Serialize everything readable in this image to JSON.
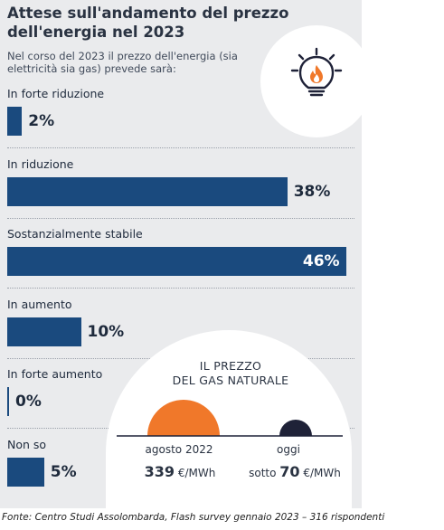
{
  "title": "Attese sull'andamento del prezzo dell'energia nel 2023",
  "subtitle": "Nel corso del 2023 il prezzo dell'energia (sia elettricità sia gas) prevede sarà:",
  "icon": "lightbulb-flame-icon",
  "colors": {
    "bar": "#1a4a7e",
    "panel": "#eaebed",
    "gas_high": "#f0782a",
    "gas_low": "#1f2238"
  },
  "chart_data": {
    "type": "bar",
    "orientation": "horizontal",
    "categories": [
      "In forte riduzione",
      "In riduzione",
      "Sostanzialmente stabile",
      "In aumento",
      "In forte aumento",
      "Non so"
    ],
    "values": [
      2,
      38,
      46,
      10,
      0,
      5
    ],
    "value_labels": [
      "2%",
      "38%",
      "46%",
      "10%",
      "0%",
      "5%"
    ],
    "unit": "%"
  },
  "gas": {
    "title_line1": "IL PREZZO",
    "title_line2": "DEL GAS NATURALE",
    "before": {
      "date": "agosto 2022",
      "prefix": "",
      "value": "339",
      "unit": "€/MWh"
    },
    "now": {
      "date": "oggi",
      "prefix": "sotto",
      "value": "70",
      "unit": "€/MWh"
    }
  },
  "source": "Fonte: Centro Studi Assolombarda, Flash survey gennaio 2023 – 316 rispondenti"
}
